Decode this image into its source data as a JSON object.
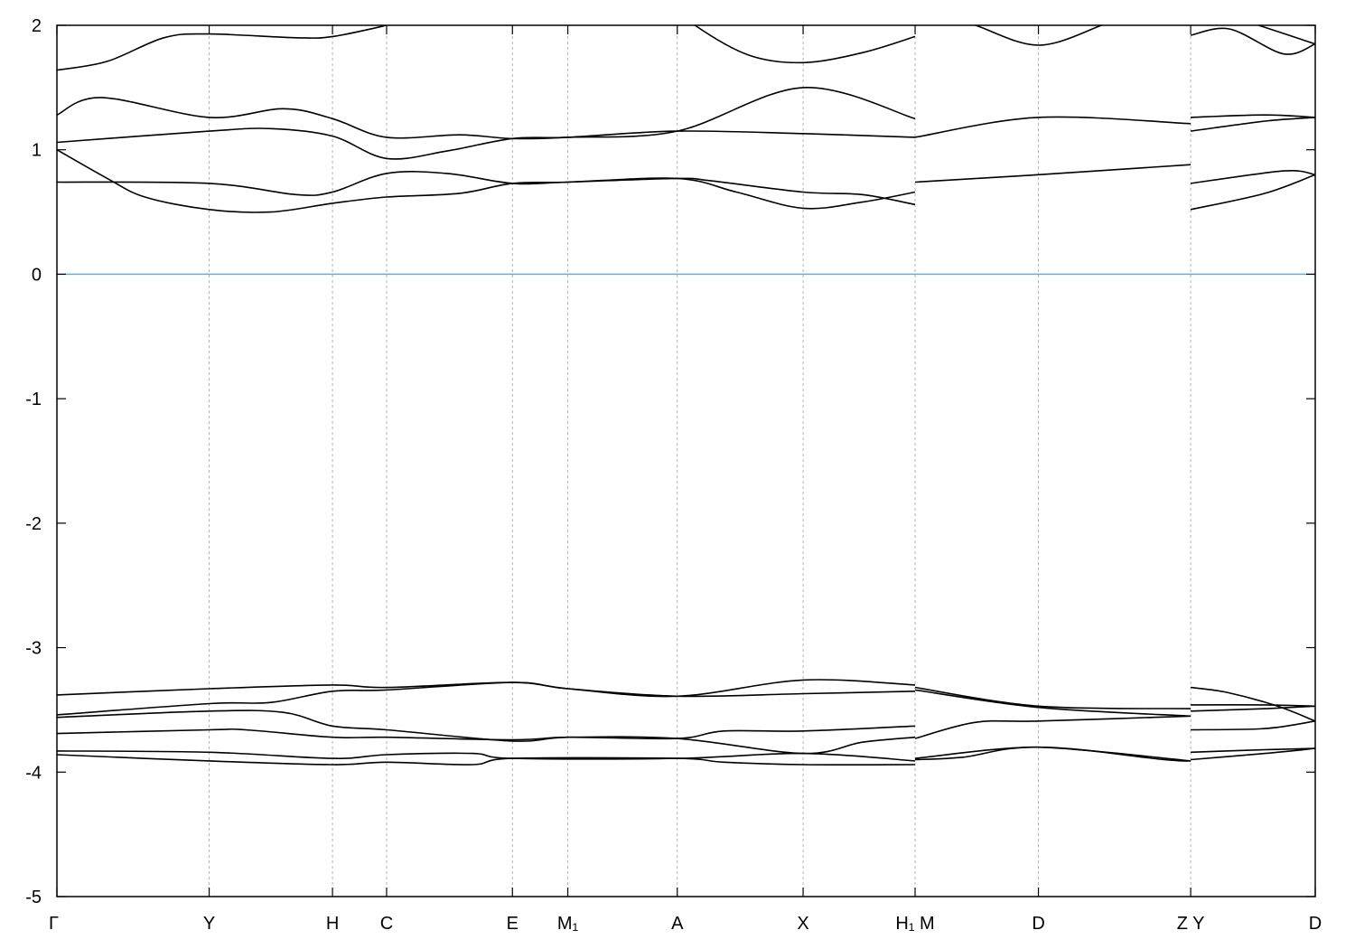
{
  "chart_data": {
    "type": "line",
    "title": "",
    "xlabel": "",
    "ylabel": "",
    "ylim": [
      -5,
      2
    ],
    "yticks": [
      -5,
      -4,
      -3,
      -2,
      -1,
      0,
      1,
      2
    ],
    "xlim": [
      0,
      1
    ],
    "grid": "dashed vertical lines at high-symmetry points",
    "legend": "none",
    "colors": {
      "bands": "#000000",
      "fermi_level": "#56b4e9",
      "grid": "#a0a0a0"
    },
    "fermi_level": 0,
    "kpoints": [
      {
        "label": "Γ",
        "k": 0
      },
      {
        "label": "Y",
        "k": 0.121
      },
      {
        "label": "H",
        "k": 0.219
      },
      {
        "label": "C",
        "k": 0.262
      },
      {
        "label": "E",
        "k": 0.362
      },
      {
        "label": "M₁",
        "k": 0.406
      },
      {
        "label": "A",
        "k": 0.493
      },
      {
        "label": "X",
        "k": 0.593
      },
      {
        "label": "H₁ M",
        "k": 0.682
      },
      {
        "label": "D",
        "k": 0.78
      },
      {
        "label": "Z Y",
        "k": 0.901
      },
      {
        "label": "D",
        "k": 1.0
      }
    ],
    "bands": [
      [
        [
          0,
          1.0
        ],
        [
          0.04,
          0.77
        ],
        [
          0.07,
          0.62
        ],
        [
          0.121,
          0.52
        ],
        [
          0.17,
          0.5
        ],
        [
          0.219,
          0.57
        ],
        [
          0.262,
          0.62
        ],
        [
          0.32,
          0.65
        ],
        [
          0.362,
          0.73
        ],
        [
          0.406,
          0.74
        ],
        [
          0.493,
          0.77
        ],
        [
          0.54,
          0.66
        ],
        [
          0.593,
          0.53
        ],
        [
          0.64,
          0.58
        ],
        [
          0.682,
          0.66
        ]
      ],
      [
        [
          0,
          0.74
        ],
        [
          0.121,
          0.73
        ],
        [
          0.19,
          0.64
        ],
        [
          0.219,
          0.66
        ],
        [
          0.262,
          0.81
        ],
        [
          0.31,
          0.81
        ],
        [
          0.362,
          0.73
        ],
        [
          0.406,
          0.74
        ],
        [
          0.493,
          0.77
        ],
        [
          0.52,
          0.75
        ],
        [
          0.593,
          0.66
        ],
        [
          0.64,
          0.64
        ],
        [
          0.682,
          0.56
        ]
      ],
      [
        [
          0,
          1.06
        ],
        [
          0.121,
          1.15
        ],
        [
          0.17,
          1.17
        ],
        [
          0.219,
          1.11
        ],
        [
          0.262,
          0.93
        ],
        [
          0.31,
          0.99
        ],
        [
          0.362,
          1.09
        ],
        [
          0.406,
          1.1
        ],
        [
          0.493,
          1.15
        ],
        [
          0.593,
          1.13
        ],
        [
          0.682,
          1.1
        ]
      ],
      [
        [
          0,
          1.28
        ],
        [
          0.035,
          1.42
        ],
        [
          0.121,
          1.26
        ],
        [
          0.18,
          1.33
        ],
        [
          0.219,
          1.25
        ],
        [
          0.262,
          1.1
        ],
        [
          0.32,
          1.12
        ],
        [
          0.362,
          1.09
        ],
        [
          0.406,
          1.1
        ],
        [
          0.493,
          1.15
        ],
        [
          0.593,
          1.5
        ],
        [
          0.682,
          1.25
        ]
      ],
      [
        [
          0,
          1.64
        ],
        [
          0.04,
          1.71
        ],
        [
          0.085,
          1.9
        ],
        [
          0.121,
          1.93
        ],
        [
          0.19,
          1.9
        ],
        [
          0.219,
          1.91
        ],
        [
          0.262,
          2.0
        ],
        [
          0.28,
          2.05
        ]
      ],
      [
        [
          0.493,
          2.15
        ],
        [
          0.507,
          2.0
        ],
        [
          0.55,
          1.76
        ],
        [
          0.593,
          1.7
        ],
        [
          0.64,
          1.78
        ],
        [
          0.682,
          1.91
        ]
      ],
      [
        [
          0.682,
          0.74
        ],
        [
          0.78,
          0.8
        ],
        [
          0.901,
          0.88
        ]
      ],
      [
        [
          0.682,
          1.1
        ],
        [
          0.78,
          1.26
        ],
        [
          0.901,
          1.21
        ]
      ],
      [
        [
          0.7,
          2.1
        ],
        [
          0.73,
          2.0
        ],
        [
          0.78,
          1.84
        ],
        [
          0.83,
          2.0
        ],
        [
          0.85,
          2.1
        ]
      ],
      [
        [
          0.901,
          0.73
        ],
        [
          0.975,
          0.83
        ],
        [
          1.0,
          0.8
        ]
      ],
      [
        [
          0.901,
          0.52
        ],
        [
          0.96,
          0.65
        ],
        [
          1.0,
          0.8
        ]
      ],
      [
        [
          0.901,
          1.26
        ],
        [
          0.96,
          1.28
        ],
        [
          1.0,
          1.26
        ]
      ],
      [
        [
          0.901,
          1.15
        ],
        [
          0.96,
          1.23
        ],
        [
          1.0,
          1.26
        ]
      ],
      [
        [
          0.901,
          1.92
        ],
        [
          0.932,
          1.97
        ],
        [
          0.975,
          1.77
        ],
        [
          1.0,
          1.85
        ]
      ],
      [
        [
          0.955,
          2.0
        ],
        [
          1.0,
          1.85
        ]
      ],
      [
        [
          0,
          -3.38
        ],
        [
          0.121,
          -3.33
        ],
        [
          0.219,
          -3.3
        ],
        [
          0.262,
          -3.32
        ],
        [
          0.362,
          -3.28
        ],
        [
          0.406,
          -3.33
        ],
        [
          0.493,
          -3.39
        ],
        [
          0.593,
          -3.26
        ],
        [
          0.682,
          -3.3
        ]
      ],
      [
        [
          0,
          -3.54
        ],
        [
          0.121,
          -3.45
        ],
        [
          0.17,
          -3.44
        ],
        [
          0.219,
          -3.35
        ],
        [
          0.262,
          -3.34
        ],
        [
          0.362,
          -3.28
        ],
        [
          0.406,
          -3.33
        ],
        [
          0.493,
          -3.39
        ],
        [
          0.593,
          -3.37
        ],
        [
          0.682,
          -3.35
        ]
      ],
      [
        [
          0,
          -3.56
        ],
        [
          0.121,
          -3.51
        ],
        [
          0.18,
          -3.52
        ],
        [
          0.219,
          -3.63
        ],
        [
          0.262,
          -3.66
        ],
        [
          0.362,
          -3.75
        ],
        [
          0.406,
          -3.72
        ],
        [
          0.493,
          -3.73
        ],
        [
          0.53,
          -3.67
        ],
        [
          0.593,
          -3.67
        ],
        [
          0.682,
          -3.63
        ]
      ],
      [
        [
          0,
          -3.69
        ],
        [
          0.121,
          -3.66
        ],
        [
          0.15,
          -3.66
        ],
        [
          0.219,
          -3.72
        ],
        [
          0.262,
          -3.72
        ],
        [
          0.362,
          -3.74
        ],
        [
          0.406,
          -3.72
        ],
        [
          0.493,
          -3.73
        ],
        [
          0.593,
          -3.85
        ],
        [
          0.64,
          -3.76
        ],
        [
          0.682,
          -3.72
        ]
      ],
      [
        [
          0,
          -3.83
        ],
        [
          0.121,
          -3.84
        ],
        [
          0.219,
          -3.89
        ],
        [
          0.262,
          -3.86
        ],
        [
          0.33,
          -3.85
        ],
        [
          0.362,
          -3.89
        ],
        [
          0.493,
          -3.89
        ],
        [
          0.593,
          -3.85
        ],
        [
          0.682,
          -3.91
        ]
      ],
      [
        [
          0,
          -3.86
        ],
        [
          0.121,
          -3.91
        ],
        [
          0.219,
          -3.94
        ],
        [
          0.262,
          -3.92
        ],
        [
          0.33,
          -3.94
        ],
        [
          0.362,
          -3.89
        ],
        [
          0.493,
          -3.89
        ],
        [
          0.53,
          -3.92
        ],
        [
          0.593,
          -3.94
        ],
        [
          0.682,
          -3.94
        ]
      ],
      [
        [
          0.682,
          -3.32
        ],
        [
          0.78,
          -3.47
        ],
        [
          0.901,
          -3.49
        ]
      ],
      [
        [
          0.682,
          -3.34
        ],
        [
          0.78,
          -3.48
        ],
        [
          0.901,
          -3.55
        ]
      ],
      [
        [
          0.682,
          -3.73
        ],
        [
          0.73,
          -3.6
        ],
        [
          0.78,
          -3.59
        ],
        [
          0.901,
          -3.55
        ]
      ],
      [
        [
          0.682,
          -3.89
        ],
        [
          0.78,
          -3.8
        ],
        [
          0.88,
          -3.9
        ],
        [
          0.901,
          -3.91
        ]
      ],
      [
        [
          0.682,
          -3.9
        ],
        [
          0.72,
          -3.88
        ],
        [
          0.78,
          -3.8
        ],
        [
          0.901,
          -3.91
        ]
      ],
      [
        [
          0.901,
          -3.32
        ],
        [
          0.93,
          -3.36
        ],
        [
          0.97,
          -3.47
        ],
        [
          1.0,
          -3.59
        ]
      ],
      [
        [
          0.901,
          -3.46
        ],
        [
          0.96,
          -3.46
        ],
        [
          1.0,
          -3.47
        ]
      ],
      [
        [
          0.901,
          -3.51
        ],
        [
          0.96,
          -3.49
        ],
        [
          1.0,
          -3.47
        ]
      ],
      [
        [
          0.901,
          -3.66
        ],
        [
          0.96,
          -3.65
        ],
        [
          1.0,
          -3.59
        ]
      ],
      [
        [
          0.901,
          -3.84
        ],
        [
          0.96,
          -3.82
        ],
        [
          1.0,
          -3.81
        ]
      ],
      [
        [
          0.901,
          -3.9
        ],
        [
          0.96,
          -3.85
        ],
        [
          1.0,
          -3.81
        ]
      ]
    ]
  }
}
